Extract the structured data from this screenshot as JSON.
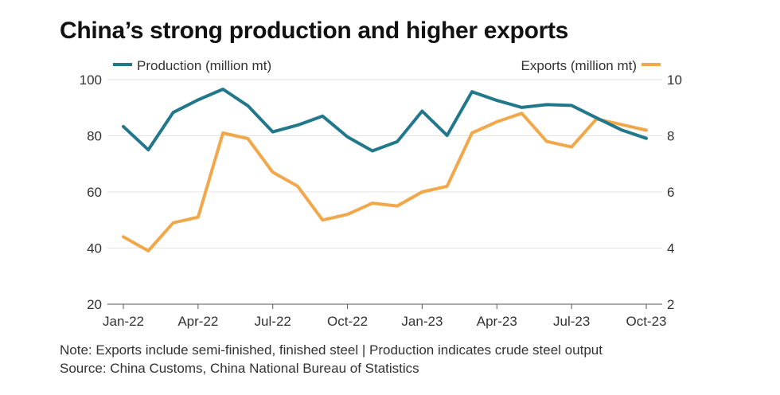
{
  "title": "China’s strong production and higher exports",
  "notes": {
    "note": "Note: Exports include semi-finished, finished steel | Production indicates crude steel output",
    "source": "Source: China Customs, China National Bureau of Statistics"
  },
  "colors": {
    "production": "#21788a",
    "exports": "#f0a84a",
    "grid": "#e3e3e3",
    "axis": "#555555"
  },
  "chart_data": {
    "type": "line",
    "x": [
      "Jan-22",
      "Feb-22",
      "Mar-22",
      "Apr-22",
      "May-22",
      "Jun-22",
      "Jul-22",
      "Aug-22",
      "Sep-22",
      "Oct-22",
      "Nov-22",
      "Dec-22",
      "Jan-23",
      "Feb-23",
      "Mar-23",
      "Apr-23",
      "May-23",
      "Jun-23",
      "Jul-23",
      "Aug-23",
      "Sep-23",
      "Oct-23"
    ],
    "x_tick_labels": [
      "Jan-22",
      "Apr-22",
      "Jul-22",
      "Oct-22",
      "Jan-23",
      "Apr-23",
      "Jul-23",
      "Oct-23"
    ],
    "x_tick_indices": [
      0,
      3,
      6,
      9,
      12,
      15,
      18,
      21
    ],
    "series": [
      {
        "name": "Production (million mt)",
        "axis": "left",
        "values": [
          83.3,
          75.0,
          88.3,
          92.8,
          96.6,
          90.7,
          81.4,
          83.8,
          87.0,
          79.6,
          74.6,
          77.9,
          88.8,
          80.1,
          95.7,
          92.6,
          90.1,
          91.1,
          90.8,
          86.4,
          82.1,
          79.1
        ]
      },
      {
        "name": "Exports (million mt)",
        "axis": "right",
        "values": [
          4.4,
          3.9,
          4.9,
          5.1,
          8.1,
          7.9,
          6.7,
          6.2,
          5.0,
          5.2,
          5.6,
          5.5,
          6.0,
          6.2,
          8.1,
          8.5,
          8.8,
          7.8,
          7.6,
          8.6,
          8.4,
          8.2
        ]
      }
    ],
    "ylabel_left": "Production (million mt)",
    "ylabel_right": "Exports (million mt)",
    "ylim_left": [
      20,
      100
    ],
    "ylim_right": [
      2,
      10
    ],
    "yticks_left": [
      20,
      40,
      60,
      80,
      100
    ],
    "yticks_right": [
      2,
      4,
      6,
      8,
      10
    ],
    "grid": true,
    "legend": "top"
  }
}
